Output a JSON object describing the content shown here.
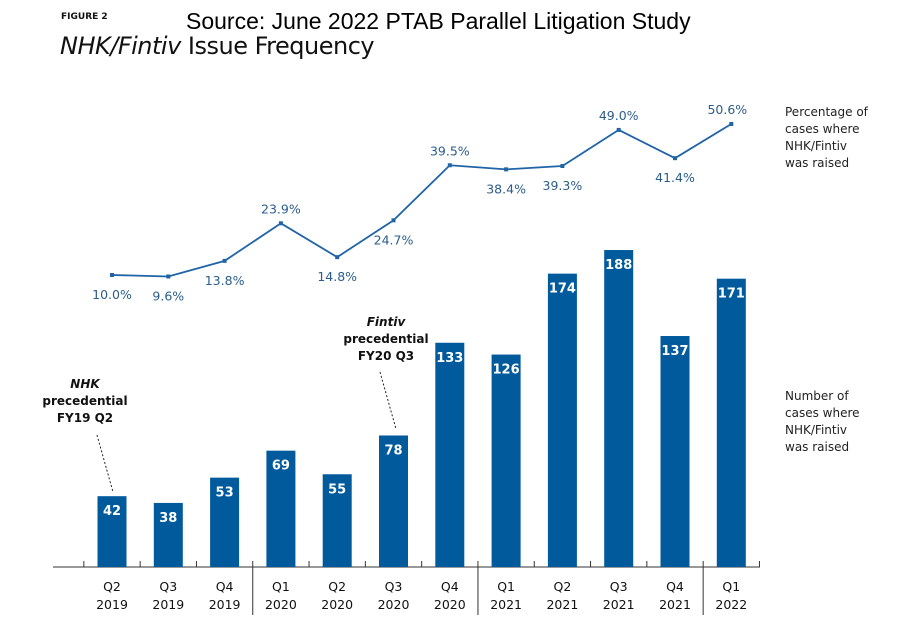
{
  "figure_label": "FIGURE 2",
  "source": "Source:  June 2022 PTAB Parallel Litigation Study",
  "chart_data": {
    "type": "bar+line",
    "title_italic": "NHK/Fintiv",
    "title_rest": " Issue Frequency",
    "categories": [
      [
        "Q2",
        "2019"
      ],
      [
        "Q3",
        "2019"
      ],
      [
        "Q4",
        "2019"
      ],
      [
        "Q1",
        "2020"
      ],
      [
        "Q2",
        "2020"
      ],
      [
        "Q3",
        "2020"
      ],
      [
        "Q4",
        "2020"
      ],
      [
        "Q1",
        "2021"
      ],
      [
        "Q2",
        "2021"
      ],
      [
        "Q3",
        "2021"
      ],
      [
        "Q4",
        "2021"
      ],
      [
        "Q1",
        "2022"
      ]
    ],
    "series": [
      {
        "name": "Number of cases where NHK/Fintiv was raised",
        "type": "bar",
        "values": [
          42,
          38,
          53,
          69,
          55,
          78,
          133,
          126,
          174,
          188,
          137,
          171
        ]
      },
      {
        "name": "Percentage of cases where NHK/Fintiv was raised",
        "type": "line",
        "values": [
          10.0,
          9.6,
          13.8,
          23.9,
          14.8,
          24.7,
          39.5,
          38.4,
          39.3,
          49.0,
          41.4,
          50.6
        ],
        "labels": [
          "10.0%",
          "9.6%",
          "13.8%",
          "23.9%",
          "14.8%",
          "24.7%",
          "39.5%",
          "38.4%",
          "39.3%",
          "49.0%",
          "41.4%",
          "50.6%"
        ]
      }
    ],
    "side_labels": {
      "line": [
        "Percentage of",
        "cases where",
        "NHK/Fintiv",
        "was raised"
      ],
      "bar": [
        "Number of",
        "cases where",
        "NHK/Fintiv",
        "was raised"
      ]
    },
    "annotations": [
      {
        "italic": "NHK",
        "lines": [
          "precedential",
          "FY19 Q2"
        ],
        "category_index": 0
      },
      {
        "italic": "Fintiv",
        "lines": [
          "precedential",
          "FY20 Q3"
        ],
        "category_index": 5
      }
    ],
    "colors": {
      "bar": "#005a9c",
      "line": "#1f64a6",
      "line_label": "#2b5d8c",
      "bar_label": "#ffffff"
    },
    "grid": false,
    "legend": "right"
  }
}
